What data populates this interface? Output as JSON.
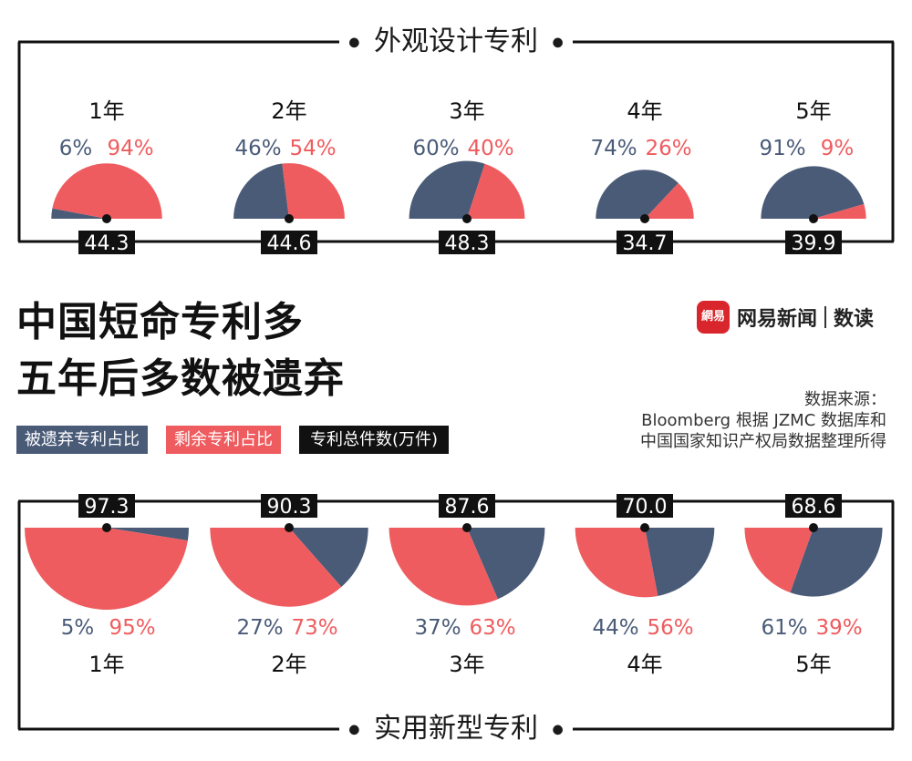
{
  "header": {
    "title_line1": "中国短命专利多",
    "title_line2": "五年后多数被遗弃",
    "brand_logo": "網易",
    "brand_name": "网易新闻",
    "brand_section": "数读",
    "source_label": "数据来源：",
    "source_line1": "Bloomberg 根据 JZMC 数据库和",
    "source_line2": "中国国家知识产权局数据整理所得"
  },
  "legend": {
    "abandoned": "被遗弃专利占比",
    "remaining": "剩余专利占比",
    "total": "专利总件数(万件)"
  },
  "colors": {
    "abandoned": "#4a5b78",
    "remaining": "#ef5c5f",
    "total_box": "#111111"
  },
  "chart_data": [
    {
      "type": "pie",
      "title": "外观设计专利",
      "categories": [
        "1年",
        "2年",
        "3年",
        "4年",
        "5年"
      ],
      "series": [
        {
          "name": "被遗弃专利占比",
          "values": [
            6,
            46,
            60,
            74,
            91
          ]
        },
        {
          "name": "剩余专利占比",
          "values": [
            94,
            54,
            40,
            26,
            9
          ]
        },
        {
          "name": "专利总件数(万件)",
          "values": [
            44.3,
            44.6,
            48.3,
            34.7,
            39.9
          ]
        }
      ],
      "pct_labels": {
        "abandoned": [
          "6%",
          "46%",
          "60%",
          "74%",
          "91%"
        ],
        "remaining": [
          "94%",
          "54%",
          "40%",
          "26%",
          "9%"
        ]
      },
      "total_labels": [
        "44.3",
        "44.6",
        "48.3",
        "34.7",
        "39.9"
      ]
    },
    {
      "type": "pie",
      "title": "实用新型专利",
      "categories": [
        "1年",
        "2年",
        "3年",
        "4年",
        "5年"
      ],
      "series": [
        {
          "name": "被遗弃专利占比",
          "values": [
            5,
            27,
            37,
            44,
            61
          ]
        },
        {
          "name": "剩余专利占比",
          "values": [
            95,
            73,
            63,
            56,
            39
          ]
        },
        {
          "name": "专利总件数(万件)",
          "values": [
            97.3,
            90.3,
            87.6,
            70.0,
            68.6
          ]
        }
      ],
      "pct_labels": {
        "abandoned": [
          "5%",
          "27%",
          "37%",
          "44%",
          "61%"
        ],
        "remaining": [
          "95%",
          "73%",
          "63%",
          "56%",
          "39%"
        ]
      },
      "total_labels": [
        "97.3",
        "90.3",
        "87.6",
        "70.0",
        "68.6"
      ]
    }
  ]
}
